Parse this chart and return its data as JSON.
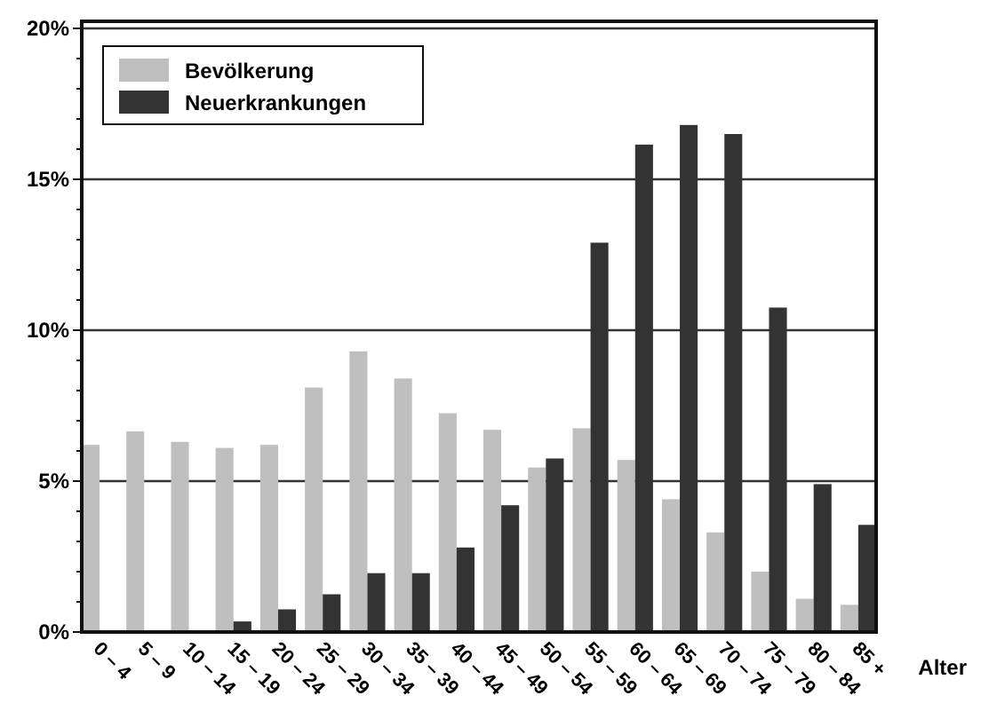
{
  "chart_data": {
    "type": "bar",
    "xlabel": "Alter",
    "categories": [
      "0 – 4",
      "5 – 9",
      "10 – 14",
      "15 – 19",
      "20 – 24",
      "25 – 29",
      "30 – 34",
      "35 – 39",
      "40 – 44",
      "45 – 49",
      "50 – 54",
      "55 – 59",
      "60 – 64",
      "65 – 69",
      "70 – 74",
      "75 – 79",
      "80 – 84",
      "85 +"
    ],
    "series": [
      {
        "name": "Bevölkerung",
        "color": "#bfbfbf",
        "values": [
          6.2,
          6.65,
          6.3,
          6.1,
          6.2,
          8.1,
          9.3,
          8.4,
          7.25,
          6.7,
          5.45,
          6.75,
          5.7,
          4.4,
          3.3,
          2.0,
          1.1,
          0.9
        ]
      },
      {
        "name": "Neuerkrankungen",
        "color": "#333333",
        "values": [
          0,
          0,
          0.05,
          0.35,
          0.75,
          1.25,
          1.95,
          1.95,
          2.8,
          4.2,
          5.75,
          12.9,
          16.15,
          16.8,
          16.5,
          10.75,
          4.9,
          3.55
        ]
      }
    ],
    "ylim": [
      0,
      20
    ],
    "yticks": [
      {
        "value": 0,
        "label": "0%"
      },
      {
        "value": 1,
        "label": null
      },
      {
        "value": 2,
        "label": null
      },
      {
        "value": 3,
        "label": null
      },
      {
        "value": 4,
        "label": null
      },
      {
        "value": 5,
        "label": "5%"
      },
      {
        "value": 6,
        "label": null
      },
      {
        "value": 7,
        "label": null
      },
      {
        "value": 8,
        "label": null
      },
      {
        "value": 9,
        "label": null
      },
      {
        "value": 10,
        "label": "10%"
      },
      {
        "value": 11,
        "label": null
      },
      {
        "value": 12,
        "label": null
      },
      {
        "value": 13,
        "label": null
      },
      {
        "value": 14,
        "label": null
      },
      {
        "value": 15,
        "label": "15%"
      },
      {
        "value": 16,
        "label": null
      },
      {
        "value": 17,
        "label": null
      },
      {
        "value": 18,
        "label": null
      },
      {
        "value": 19,
        "label": null
      },
      {
        "value": 20,
        "label": "20%"
      }
    ],
    "grid": "y",
    "legend": "top left"
  }
}
